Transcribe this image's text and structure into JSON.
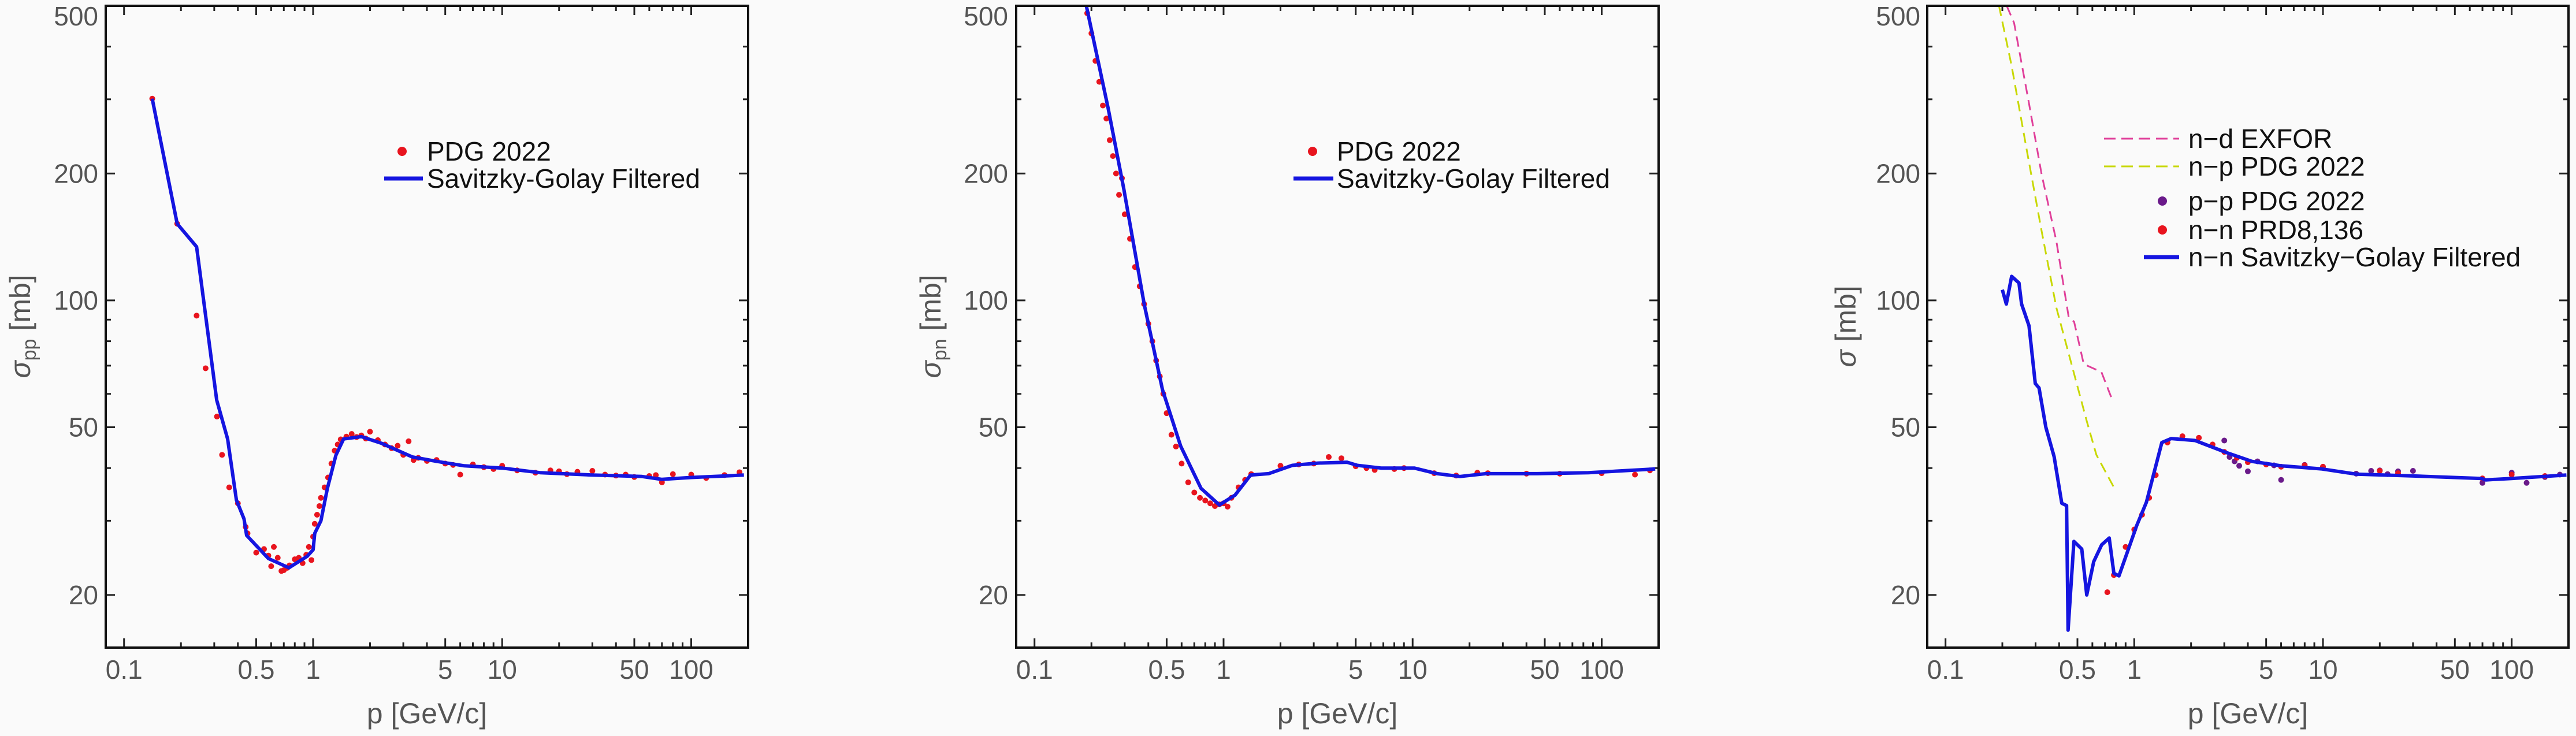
{
  "chart_data": [
    {
      "type": "line+scatter",
      "xlabel": "p [GeV/c]",
      "ylabel": {
        "symbol": "σ",
        "sub": "pp",
        "unit": "[mb]"
      },
      "xscale": "log",
      "yscale": "log",
      "xlim": [
        0.08,
        200
      ],
      "ylim": [
        15,
        500
      ],
      "xticks": [
        "0.1",
        "0.5",
        "1",
        "5",
        "10",
        "50",
        "100"
      ],
      "yticks": [
        "20",
        "50",
        "100",
        "200",
        "500"
      ],
      "grid": false,
      "legend_placement": "top-right",
      "legend": [
        {
          "label": "PDG 2022",
          "kind": "dot",
          "color": "#e8141e"
        },
        {
          "label": "Savitzky-Golay Filtered",
          "kind": "line",
          "color": "#1515e0"
        }
      ],
      "series": [
        {
          "name": "PDG 2022",
          "kind": "scatter",
          "color": "#e8141e",
          "x": [
            0.141,
            0.191,
            0.242,
            0.27,
            0.31,
            0.33,
            0.36,
            0.4,
            0.44,
            0.45,
            0.5,
            0.55,
            0.58,
            0.6,
            0.62,
            0.65,
            0.68,
            0.7,
            0.73,
            0.75,
            0.8,
            0.84,
            0.88,
            0.92,
            0.95,
            0.98,
            1.0,
            1.02,
            1.05,
            1.08,
            1.1,
            1.15,
            1.2,
            1.25,
            1.3,
            1.35,
            1.4,
            1.5,
            1.6,
            1.7,
            1.8,
            1.9,
            2.0,
            2.2,
            2.4,
            2.6,
            2.8,
            3.0,
            3.2,
            3.4,
            3.6,
            4.0,
            4.5,
            5.0,
            5.5,
            6.0,
            7.0,
            8.0,
            9.0,
            10,
            12,
            15,
            18,
            20,
            22,
            25,
            30,
            35,
            40,
            45,
            50,
            60,
            65,
            70,
            80,
            100,
            120,
            150,
            180
          ],
          "y": [
            301,
            152,
            92,
            69,
            53,
            43,
            36,
            33,
            29,
            28,
            25.2,
            25.7,
            24.8,
            23.4,
            26,
            24.5,
            22.8,
            22.9,
            23.2,
            23.5,
            24.3,
            24.5,
            23.8,
            24.9,
            26,
            24.2,
            27.5,
            29.5,
            31,
            32.5,
            34,
            36,
            38,
            41,
            44,
            45.5,
            46.8,
            47.5,
            48.2,
            47.4,
            47.8,
            47,
            48.8,
            46.6,
            45.5,
            44.6,
            45.2,
            43,
            46.3,
            41.8,
            42.3,
            41.6,
            41.8,
            41,
            40.7,
            38.6,
            40.8,
            40.2,
            39.8,
            40.5,
            39.5,
            39,
            39.5,
            39.3,
            38.7,
            39.2,
            39.4,
            38.6,
            38.4,
            38.6,
            38.1,
            38.3,
            38.5,
            37,
            38.7,
            38.6,
            37.9,
            38.5,
            39.1
          ]
        },
        {
          "name": "Savitzky-Golay Filtered",
          "kind": "line",
          "color": "#1515e0",
          "x": [
            0.141,
            0.191,
            0.242,
            0.309,
            0.353,
            0.393,
            0.431,
            0.445,
            0.58,
            0.745,
            0.93,
            1.0,
            1.02,
            1.1,
            1.19,
            1.32,
            1.45,
            1.8,
            2.3,
            3.35,
            4.5,
            6.3,
            10,
            16,
            30,
            55,
            70,
            100,
            190
          ],
          "y": [
            301,
            152,
            134,
            58,
            46.9,
            33.6,
            30.3,
            27.7,
            24.4,
            23.2,
            24.7,
            25.6,
            28,
            30,
            35.8,
            42.9,
            46.9,
            47.5,
            45.8,
            42.5,
            41.5,
            40.5,
            40,
            39,
            38.5,
            38.2,
            37.6,
            38,
            38.5
          ]
        }
      ]
    },
    {
      "type": "line+scatter",
      "xlabel": "p [GeV/c]",
      "ylabel": {
        "symbol": "σ",
        "sub": "pn",
        "unit": "[mb]"
      },
      "xscale": "log",
      "yscale": "log",
      "xlim": [
        0.08,
        200
      ],
      "ylim": [
        15,
        500
      ],
      "xticks": [
        "0.1",
        "0.5",
        "1",
        "5",
        "10",
        "50",
        "100"
      ],
      "yticks": [
        "20",
        "50",
        "100",
        "200",
        "500"
      ],
      "grid": false,
      "legend_placement": "top-right",
      "legend": [
        {
          "label": "PDG 2022",
          "kind": "dot",
          "color": "#e8141e"
        },
        {
          "label": "Savitzky-Golay Filtered",
          "kind": "line",
          "color": "#1515e0"
        }
      ],
      "series": [
        {
          "name": "PDG 2022",
          "kind": "scatter",
          "color": "#e8141e",
          "x": [
            0.19,
            0.2,
            0.21,
            0.22,
            0.23,
            0.24,
            0.25,
            0.26,
            0.27,
            0.28,
            0.29,
            0.3,
            0.32,
            0.34,
            0.36,
            0.38,
            0.4,
            0.42,
            0.44,
            0.46,
            0.48,
            0.5,
            0.53,
            0.56,
            0.6,
            0.65,
            0.7,
            0.75,
            0.8,
            0.85,
            0.9,
            0.95,
            1.0,
            1.05,
            1.1,
            1.2,
            1.3,
            1.4,
            2.0,
            2.5,
            3.0,
            3.6,
            4.2,
            5.0,
            5.7,
            6.3,
            8.0,
            9.0,
            13,
            17,
            22,
            25,
            40,
            60,
            100,
            150,
            180
          ],
          "y": [
            480,
            430,
            370,
            330,
            290,
            270,
            240,
            220,
            200,
            178,
            195,
            160,
            140,
            120,
            108,
            98,
            88,
            80,
            72,
            66,
            60,
            54,
            48,
            45,
            41,
            37,
            35,
            34,
            33.5,
            33,
            32.5,
            32.8,
            33,
            32.4,
            34,
            36,
            37.5,
            38.7,
            40.5,
            40.8,
            41,
            42.5,
            42.2,
            40.4,
            40,
            39.6,
            39.8,
            40,
            38.9,
            38.4,
            39,
            38.9,
            38.8,
            38.8,
            38.9,
            38.6,
            39.5
          ]
        },
        {
          "name": "Savitzky-Golay Filtered",
          "kind": "line",
          "color": "#1515e0",
          "x": [
            0.188,
            0.245,
            0.296,
            0.381,
            0.475,
            0.593,
            0.76,
            0.95,
            1.15,
            1.39,
            1.73,
            2.31,
            3.16,
            4.5,
            5.1,
            6.8,
            10.2,
            13.5,
            17.8,
            24.4,
            45.6,
            85,
            192
          ],
          "y": [
            500,
            286,
            185,
            97.6,
            61.4,
            45.1,
            35.8,
            32.7,
            34.5,
            38.5,
            38.8,
            40.6,
            41.1,
            41.3,
            40.6,
            40,
            40,
            38.8,
            38.2,
            38.8,
            38.8,
            39,
            39.8
          ]
        }
      ]
    },
    {
      "type": "line+scatter",
      "xlabel": "p [GeV/c]",
      "ylabel": {
        "symbol": "σ",
        "sub": "",
        "unit": "[mb]"
      },
      "xscale": "log",
      "yscale": "log",
      "xlim": [
        0.08,
        200
      ],
      "ylim": [
        15,
        500
      ],
      "xticks": [
        "0.1",
        "0.5",
        "1",
        "5",
        "10",
        "50",
        "100"
      ],
      "yticks": [
        "20",
        "50",
        "100",
        "200",
        "500"
      ],
      "grid": false,
      "legend_placement": "top-right",
      "legend": [
        {
          "label": "n−d EXFOR",
          "kind": "dash",
          "color": "#e0409a"
        },
        {
          "label": "n−p PDG 2022",
          "kind": "dash",
          "color": "#c8d800"
        },
        {
          "label": "p−p PDG 2022",
          "kind": "dot",
          "color": "#6a1a8a"
        },
        {
          "label": "n−n PRD8,136",
          "kind": "dot",
          "color": "#e8141e"
        },
        {
          "label": "n−n Savitzky−Golay Filtered",
          "kind": "line",
          "color": "#1515e0"
        }
      ],
      "series": [
        {
          "name": "n−d EXFOR",
          "kind": "dash",
          "color": "#e0409a",
          "x": [
            0.211,
            0.231,
            0.277,
            0.323,
            0.387,
            0.45,
            0.48,
            0.54,
            0.67,
            0.76
          ],
          "y": [
            500,
            455,
            293,
            199,
            138,
            91,
            89,
            70.6,
            67.6,
            58.5
          ]
        },
        {
          "name": "n−p PDG 2022",
          "kind": "dash",
          "color": "#c8d800",
          "x": [
            0.192,
            0.224,
            0.27,
            0.323,
            0.387,
            0.465,
            0.56,
            0.63,
            0.78
          ],
          "y": [
            500,
            360,
            226,
            146,
            96,
            70.6,
            51.7,
            43,
            36
          ]
        },
        {
          "name": "p−p PDG 2022",
          "kind": "scatter",
          "color": "#6a1a8a",
          "x": [
            3.0,
            3.2,
            3.4,
            3.6,
            4.0,
            4.5,
            5.5,
            6.0,
            8.0,
            10,
            15,
            18,
            20,
            22,
            25,
            30,
            70,
            100,
            120,
            150,
            180
          ],
          "y": [
            46.5,
            42.5,
            41.5,
            40.5,
            39.3,
            41.5,
            40.6,
            37.5,
            40.7,
            40.3,
            38.8,
            39.4,
            39.5,
            38.7,
            39.3,
            39.4,
            36.9,
            39,
            36.9,
            38.1,
            38.6
          ]
        },
        {
          "name": "n−n PRD8,136",
          "kind": "scatter",
          "color": "#e8141e",
          "x": [
            0.72,
            0.78,
            0.9,
            1.0,
            1.1,
            1.2,
            1.3,
            1.5,
            1.8,
            2.2,
            2.6,
            3.0,
            3.5,
            4.0,
            5.0,
            6.0,
            8.0,
            10,
            20,
            25,
            70,
            100,
            150
          ],
          "y": [
            20.3,
            22.3,
            26,
            28.6,
            31,
            34,
            38.5,
            46,
            47.6,
            47.2,
            45.5,
            43.7,
            42.3,
            41.3,
            40.8,
            40.3,
            40.6,
            40.3,
            39.4,
            38.9,
            37.8,
            38.6,
            38.3
          ]
        },
        {
          "name": "n−n Savitzky−Golay Filtered",
          "kind": "line",
          "color": "#1515e0",
          "x": [
            0.2,
            0.21,
            0.224,
            0.245,
            0.253,
            0.277,
            0.299,
            0.313,
            0.34,
            0.376,
            0.413,
            0.438,
            0.446,
            0.479,
            0.527,
            0.56,
            0.61,
            0.672,
            0.737,
            0.78,
            0.83,
            1.03,
            1.16,
            1.4,
            1.57,
            2.1,
            3.1,
            4.2,
            6,
            9.9,
            15,
            31,
            69,
            73,
            100,
            195
          ],
          "y": [
            106,
            98,
            114,
            110,
            98,
            87,
            63.5,
            62,
            50,
            42.6,
            33,
            32.6,
            16.5,
            26.8,
            25.7,
            20,
            24,
            26.3,
            27.3,
            22.5,
            22.2,
            29.2,
            33.2,
            46,
            47,
            46.5,
            43.5,
            41.5,
            40.5,
            39.8,
            38.7,
            38.3,
            37.8,
            37.5,
            37.8,
            38.5
          ]
        }
      ]
    }
  ]
}
